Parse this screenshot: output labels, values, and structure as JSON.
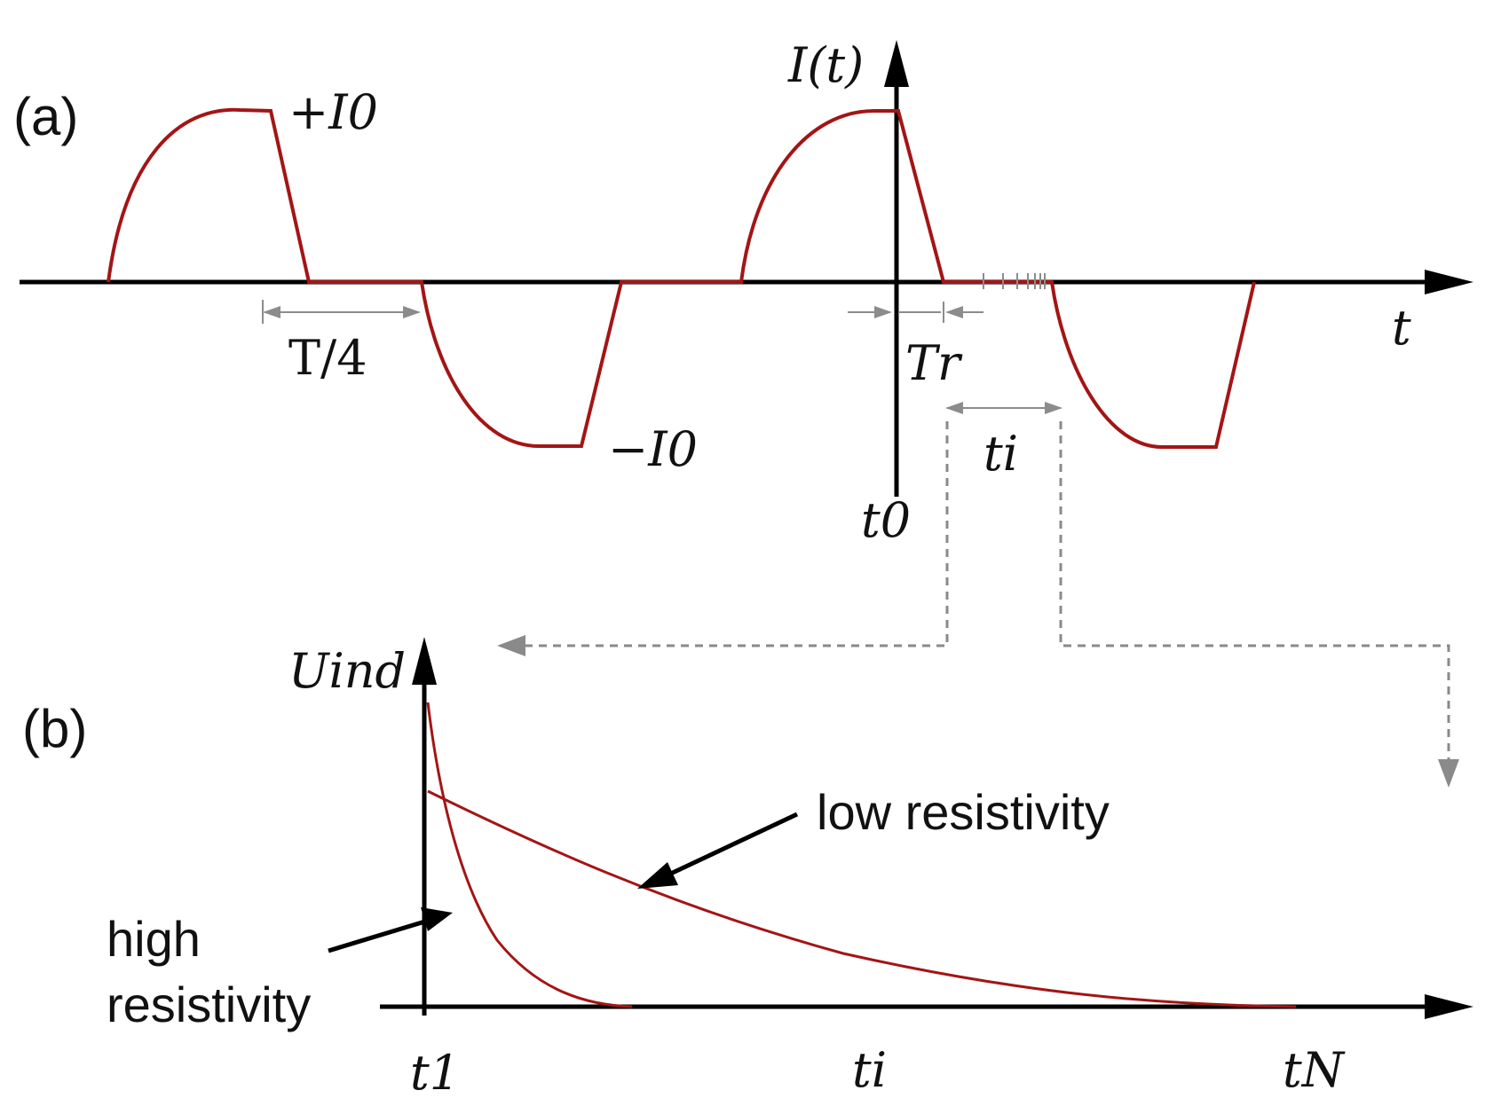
{
  "colors": {
    "axis": "#000000",
    "waveform": "#a31515",
    "guide": "#8c8c8c",
    "dashed": "#8a8a8a",
    "text": "#111111"
  },
  "panel_a": {
    "label": "(a)",
    "y_axis_label": "I(t)",
    "x_axis_label": "t",
    "plus_amplitude": "+I0",
    "minus_amplitude": "−I0",
    "quarter_period": "T/4",
    "ramp_time": "Tr",
    "origin_time": "t0",
    "interval": "ti"
  },
  "panel_b": {
    "label": "(b)",
    "y_axis_label": "Uind",
    "low_label": "low resistivity",
    "high_label_line1": "high",
    "high_label_line2": "resistivity",
    "x_tick_first": "t1",
    "x_tick_mid": "ti",
    "x_tick_last": "tN"
  }
}
